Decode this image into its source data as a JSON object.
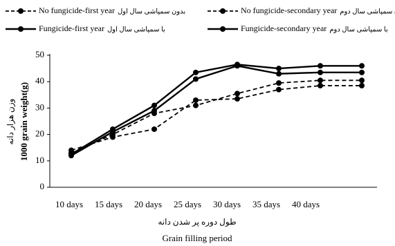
{
  "chart_data": {
    "type": "line",
    "xlabel": "Grain filling period",
    "xlabel_fa": "طول دوره پر شدن دانه",
    "ylabel": "1000 grain weight(g)",
    "ylabel_fa": "وزن هزار دانه",
    "categories": [
      "10 days",
      "15 days",
      "20 days",
      "25 days",
      "30 days",
      "35 days",
      "40 days",
      null
    ],
    "series": [
      {
        "name": "No fungicide-first  year",
        "label_fa": "بدون سمپاشی سال اول",
        "color": "#000000",
        "dashed": true,
        "values": [
          14,
          19,
          22,
          33,
          33.5,
          37,
          38.5,
          38.5
        ]
      },
      {
        "name": "Fungicide-first year",
        "label_fa": "با سمپاشی سال اول",
        "color": "#000000",
        "dashed": false,
        "values": [
          12,
          21,
          29,
          41,
          46,
          43,
          43.5,
          43.5
        ]
      },
      {
        "name": "No fungicide-secondary year",
        "label_fa": "بدون سمپاشی سال دوم",
        "color": "#000000",
        "dashed": true,
        "values": [
          13,
          20,
          28,
          31,
          35.5,
          39.5,
          40.5,
          40.5
        ]
      },
      {
        "name": "Fungicide-secondary year",
        "label_fa": "با سمپاشی سال دوم",
        "color": "#000000",
        "dashed": false,
        "values": [
          12.5,
          22,
          31,
          43.5,
          46.5,
          45,
          46,
          46
        ]
      }
    ],
    "ylim": [
      0,
      50
    ],
    "yticks": [
      0,
      10,
      20,
      30,
      40,
      50
    ]
  }
}
